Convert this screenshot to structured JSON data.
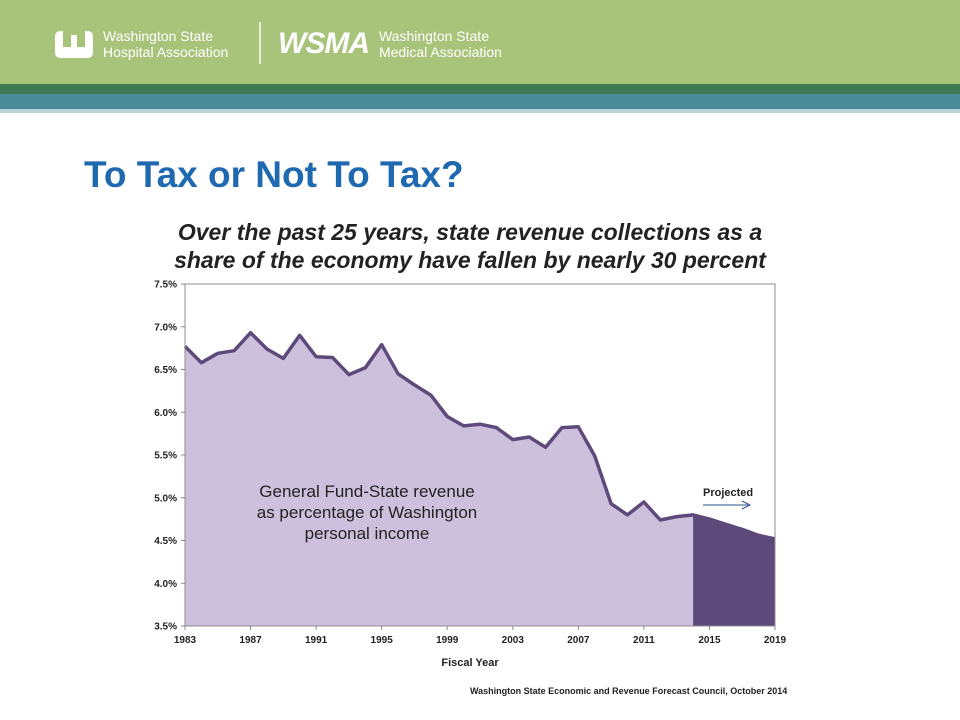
{
  "header": {
    "logo1": {
      "line1": "Washington State",
      "line2": "Hospital Association"
    },
    "logo2": {
      "mark": "WSMA",
      "line1": "Washington State",
      "line2": "Medical Association"
    }
  },
  "slide_title": "To Tax or Not To Tax?",
  "source": "Washington State Economic  and Revenue Forecast Council, October 2014",
  "colors": {
    "header_bg": "#a8c47a",
    "title": "#1f69b0",
    "area_actual": "#ccc0dc",
    "area_projected": "#5e4a7a",
    "line": "#5e4a7a"
  },
  "chart_data": {
    "type": "area",
    "title": "Over the past 25 years, state revenue collections as a share of the economy have fallen by nearly 30 percent",
    "xlabel": "Fiscal Year",
    "ylabel": "",
    "xlim": [
      1983,
      2019
    ],
    "ylim": [
      3.5,
      7.5
    ],
    "x_ticks": [
      "1983",
      "1987",
      "1991",
      "1995",
      "1999",
      "2003",
      "2007",
      "2011",
      "2015",
      "2019"
    ],
    "y_ticks": [
      "3.5%",
      "4.0%",
      "4.5%",
      "5.0%",
      "5.5%",
      "6.0%",
      "6.5%",
      "7.0%",
      "7.5%"
    ],
    "annotation": [
      "General Fund-State revenue",
      "as percentage of Washington",
      "personal income"
    ],
    "projected_label": "Projected",
    "projected_from": 2014,
    "series": [
      {
        "x": [
          1983,
          1984,
          1985,
          1986,
          1987,
          1988,
          1989,
          1990,
          1991,
          1992,
          1993,
          1994,
          1995,
          1996,
          1997,
          1998,
          1999,
          2000,
          2001,
          2002,
          2003,
          2004,
          2005,
          2006,
          2007,
          2008,
          2009,
          2010,
          2011,
          2012,
          2013,
          2014,
          2015,
          2016,
          2017,
          2018,
          2019
        ],
        "values": [
          6.77,
          6.58,
          6.69,
          6.72,
          6.93,
          6.74,
          6.63,
          6.9,
          6.65,
          6.64,
          6.44,
          6.52,
          6.79,
          6.45,
          6.32,
          6.2,
          5.95,
          5.84,
          5.86,
          5.82,
          5.68,
          5.71,
          5.59,
          5.82,
          5.83,
          5.49,
          4.93,
          4.8,
          4.95,
          4.74,
          4.78,
          4.8,
          4.75,
          4.69,
          4.63,
          4.56,
          4.52
        ]
      }
    ]
  }
}
